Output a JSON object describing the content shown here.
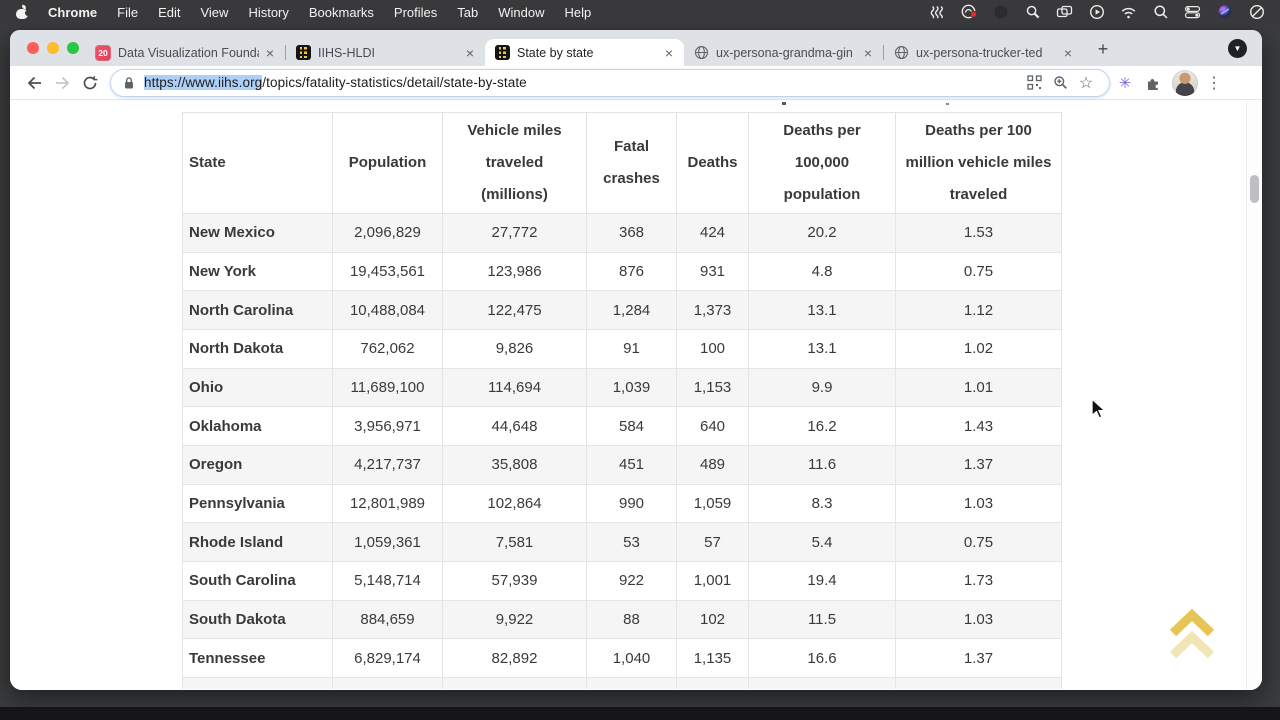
{
  "menu_bar": {
    "app_name": "Chrome",
    "items": [
      "Chrome",
      "File",
      "Edit",
      "View",
      "History",
      "Bookmarks",
      "Profiles",
      "Tab",
      "Window",
      "Help"
    ],
    "status_icon_names": [
      "waves-icon",
      "cloud-app-icon",
      "dimmed-app-icon",
      "magnifier-app-icon",
      "screen-mirroring-icon",
      "play-circle-icon",
      "wifi-icon",
      "spotlight-search-icon",
      "control-center-icon",
      "assistant-app-icon",
      "do-not-disturb-icon"
    ]
  },
  "browser": {
    "tabs": [
      {
        "title": "Data Visualization Founda",
        "favicon": "calendar",
        "favicon_label": "20",
        "active": false
      },
      {
        "title": "IIHS-HLDI",
        "favicon": "iihs",
        "active": false
      },
      {
        "title": "State by state",
        "favicon": "iihs",
        "active": true
      },
      {
        "title": "ux-persona-grandma-gin",
        "favicon": "globe",
        "active": false
      },
      {
        "title": "ux-persona-trucker-ted",
        "favicon": "globe",
        "active": false
      }
    ],
    "new_tab_label": "+",
    "tab_search_glyph": "▼",
    "close_glyph": "×",
    "url_selected": "https://www.iihs.org",
    "url_rest": "/topics/fatality-statistics/detail/state-by-state"
  },
  "table": {
    "headers": [
      "State",
      "Population",
      "Vehicle miles traveled (millions)",
      "Fatal crashes",
      "Deaths",
      "Deaths per 100,000 population",
      "Deaths per 100 million vehicle miles traveled"
    ],
    "rows": [
      [
        "New Mexico",
        "2,096,829",
        "27,772",
        "368",
        "424",
        "20.2",
        "1.53"
      ],
      [
        "New York",
        "19,453,561",
        "123,986",
        "876",
        "931",
        "4.8",
        "0.75"
      ],
      [
        "North Carolina",
        "10,488,084",
        "122,475",
        "1,284",
        "1,373",
        "13.1",
        "1.12"
      ],
      [
        "North Dakota",
        "762,062",
        "9,826",
        "91",
        "100",
        "13.1",
        "1.02"
      ],
      [
        "Ohio",
        "11,689,100",
        "114,694",
        "1,039",
        "1,153",
        "9.9",
        "1.01"
      ],
      [
        "Oklahoma",
        "3,956,971",
        "44,648",
        "584",
        "640",
        "16.2",
        "1.43"
      ],
      [
        "Oregon",
        "4,217,737",
        "35,808",
        "451",
        "489",
        "11.6",
        "1.37"
      ],
      [
        "Pennsylvania",
        "12,801,989",
        "102,864",
        "990",
        "1,059",
        "8.3",
        "1.03"
      ],
      [
        "Rhode Island",
        "1,059,361",
        "7,581",
        "53",
        "57",
        "5.4",
        "0.75"
      ],
      [
        "South Carolina",
        "5,148,714",
        "57,939",
        "922",
        "1,001",
        "19.4",
        "1.73"
      ],
      [
        "South Dakota",
        "884,659",
        "9,922",
        "88",
        "102",
        "11.5",
        "1.03"
      ],
      [
        "Tennessee",
        "6,829,174",
        "82,892",
        "1,040",
        "1,135",
        "16.6",
        "1.37"
      ]
    ]
  },
  "colors": {
    "menu_bar_bg": "#39393b",
    "tabstrip_bg": "#dee1e6",
    "url_selection": "#aed0f7",
    "row_stripe": "#f5f5f6",
    "back_to_top_gold": "#e3bd3c",
    "back_to_top_gold_faded": "#ece0a8",
    "traffic_red": "#ff5f57",
    "traffic_yellow": "#febc2e",
    "traffic_green": "#28c840"
  }
}
